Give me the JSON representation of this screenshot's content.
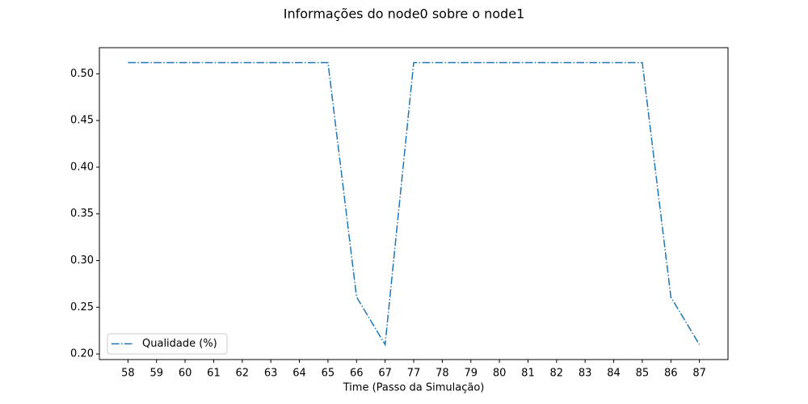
{
  "chart_data": {
    "type": "line",
    "title": "Informações do node0 sobre o node1",
    "xlabel": "Time (Passo da Simulação)",
    "categories": [
      "58",
      "59",
      "60",
      "61",
      "62",
      "63",
      "64",
      "65",
      "66",
      "67",
      "77",
      "78",
      "79",
      "80",
      "81",
      "82",
      "83",
      "84",
      "85",
      "86",
      "87"
    ],
    "series": [
      {
        "name": "Qualidade (%)",
        "color": "#1f77b4",
        "values": [
          0.512,
          0.512,
          0.512,
          0.512,
          0.512,
          0.512,
          0.512,
          0.512,
          0.261,
          0.21,
          0.512,
          0.512,
          0.512,
          0.512,
          0.512,
          0.512,
          0.512,
          0.512,
          0.512,
          0.261,
          0.21
        ]
      }
    ],
    "ylim": [
      0.194,
      0.528
    ],
    "yticks": [
      {
        "value": 0.2,
        "label": "0.20"
      },
      {
        "value": 0.25,
        "label": "0.25"
      },
      {
        "value": 0.3,
        "label": "0.30"
      },
      {
        "value": 0.35,
        "label": "0.35"
      },
      {
        "value": 0.4,
        "label": "0.40"
      },
      {
        "value": 0.45,
        "label": "0.45"
      },
      {
        "value": 0.5,
        "label": "0.50"
      }
    ],
    "grid": false,
    "legend": "lower left",
    "linestyle": "dashdot"
  }
}
